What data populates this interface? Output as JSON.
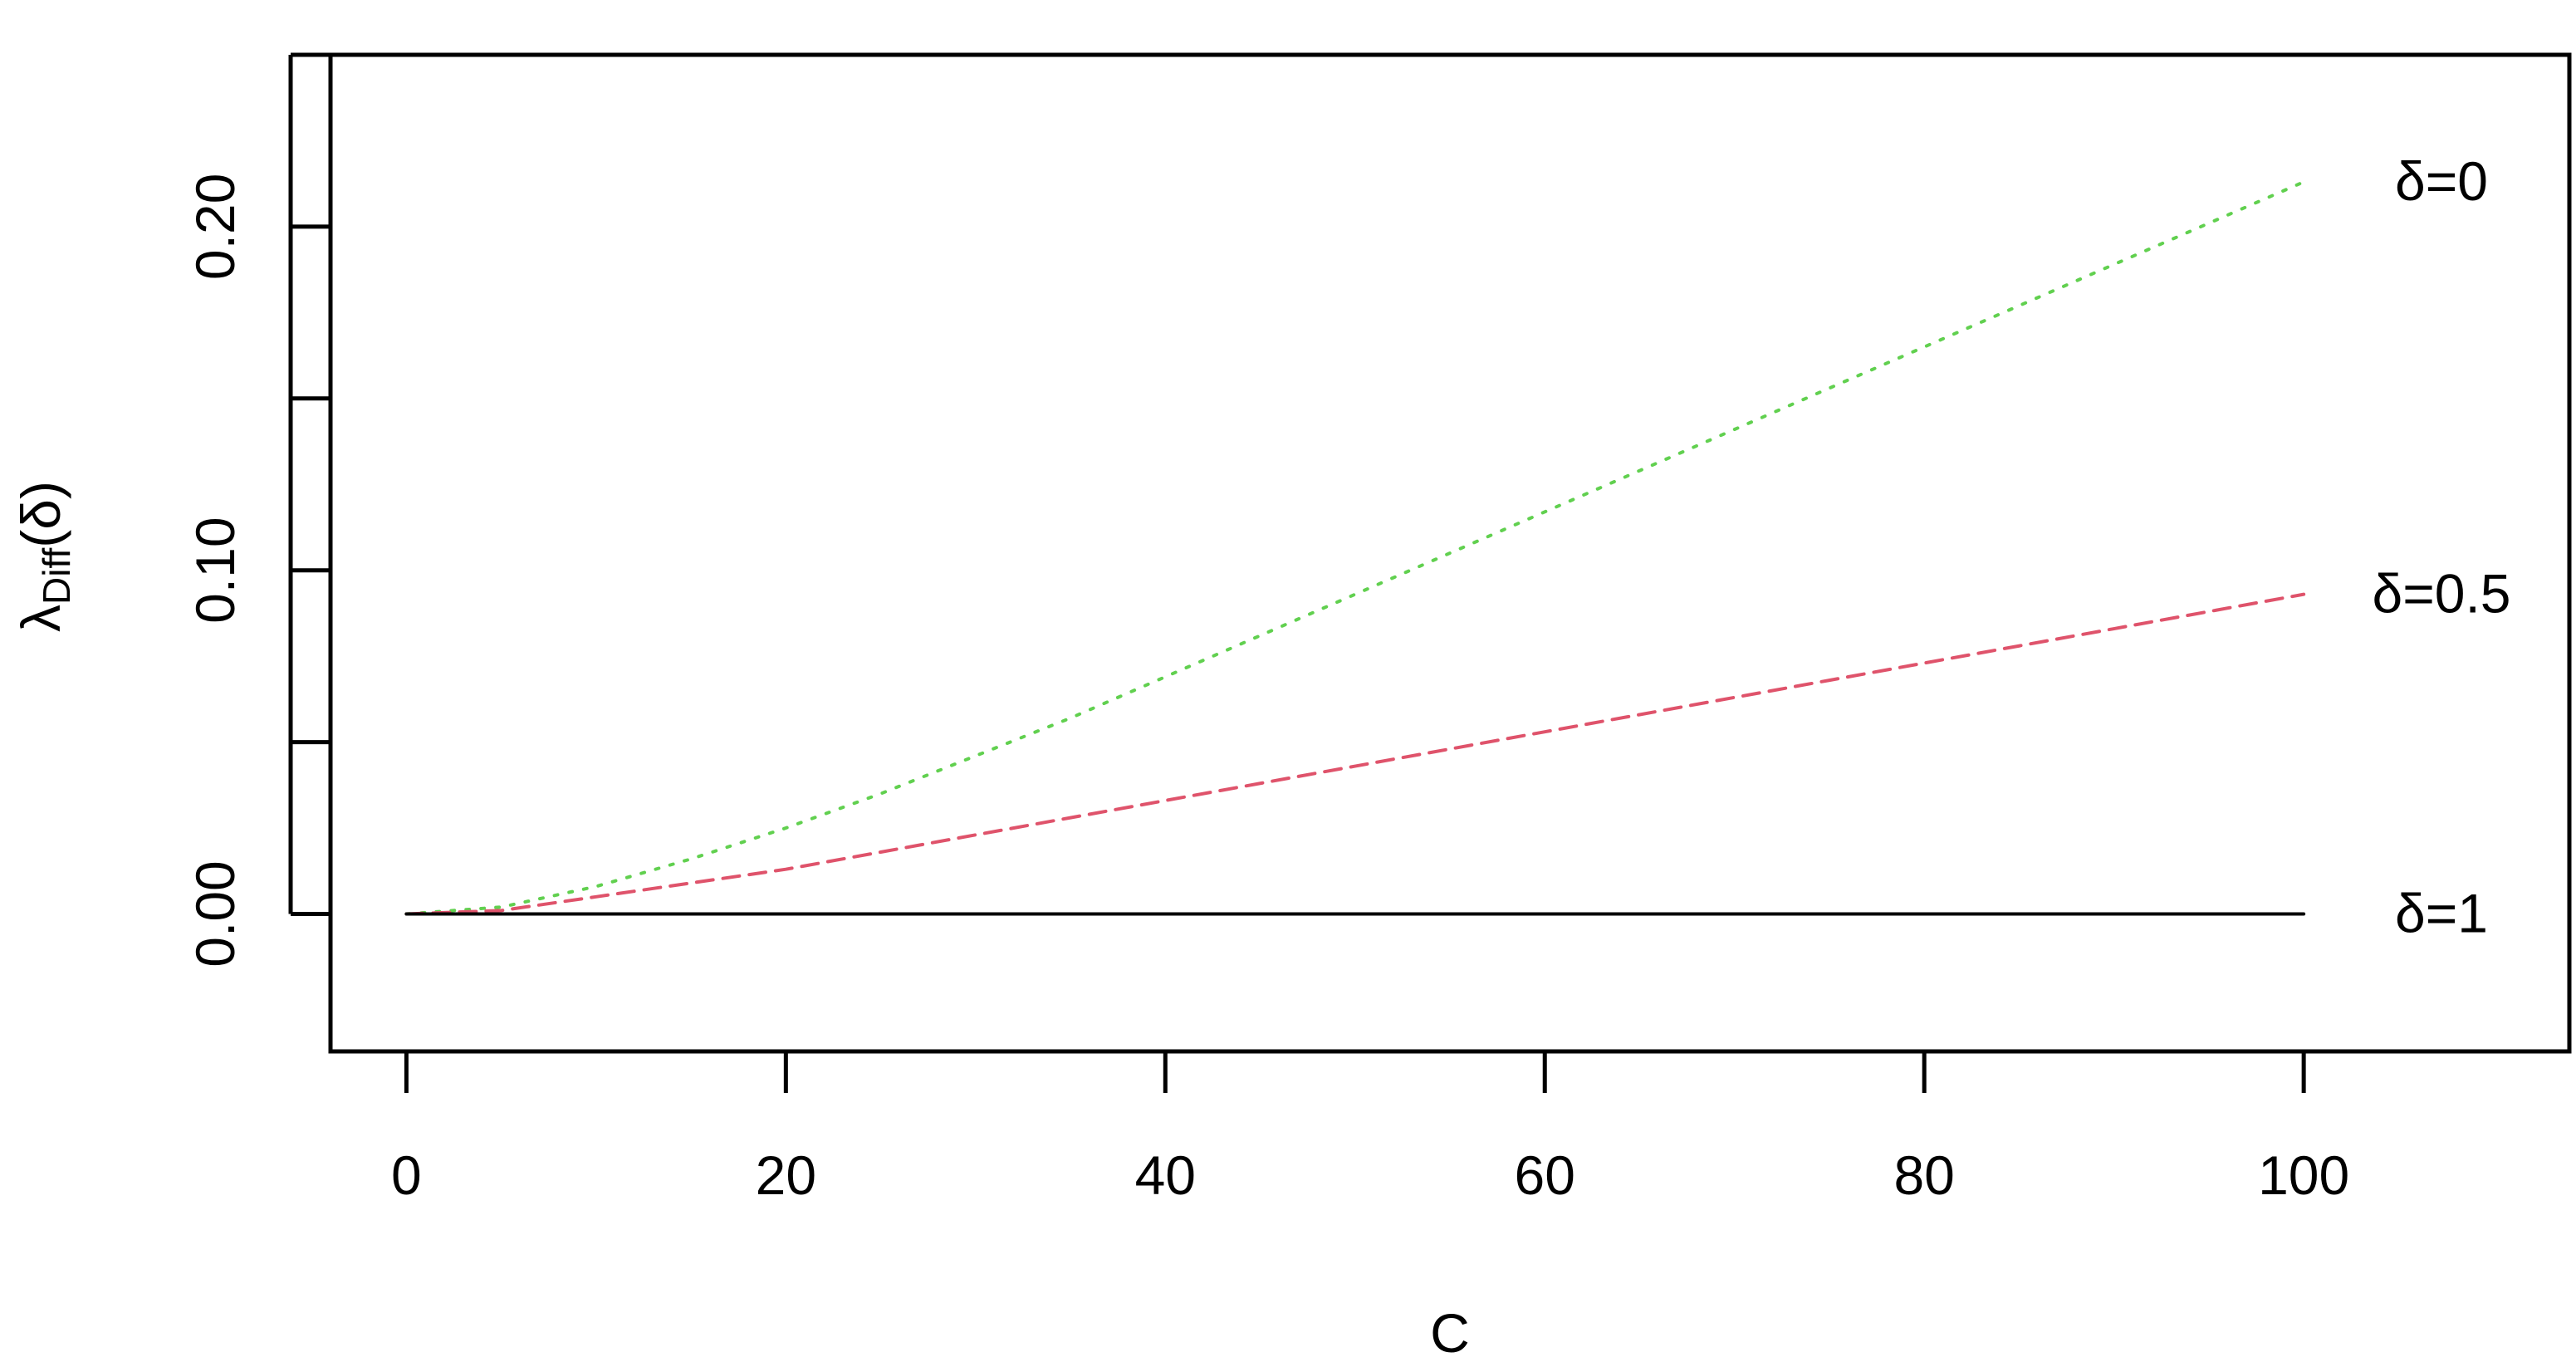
{
  "chart_data": {
    "type": "line",
    "title": "",
    "xlabel": "C",
    "ylabel": {
      "symbol": "λ",
      "subscript": "Diff",
      "argument": "(δ)"
    },
    "xlim": [
      -4,
      114
    ],
    "ylim": [
      -0.04,
      0.25
    ],
    "xticks": [
      0,
      20,
      40,
      60,
      80,
      100
    ],
    "xtick_labels": [
      "0",
      "20",
      "40",
      "60",
      "80",
      "100"
    ],
    "yticks": [
      0.0,
      0.05,
      0.1,
      0.15,
      0.2,
      0.25
    ],
    "ytick_labels": [
      "0.00",
      "",
      "0.10",
      "",
      "0.20",
      ""
    ],
    "grid": false,
    "legend": "none",
    "series": [
      {
        "name": "δ=0",
        "color": "#61D04F",
        "line_style": "dotted",
        "x": [
          0,
          5,
          10,
          15,
          20,
          25,
          30,
          35,
          40,
          45,
          50,
          55,
          60,
          65,
          70,
          75,
          80,
          85,
          90,
          95,
          100
        ],
        "y": [
          0.0,
          0.002,
          0.008,
          0.016,
          0.025,
          0.035,
          0.046,
          0.057,
          0.069,
          0.081,
          0.093,
          0.105,
          0.117,
          0.129,
          0.141,
          0.153,
          0.165,
          0.177,
          0.189,
          0.201,
          0.213
        ]
      },
      {
        "name": "δ=0.5",
        "color": "#DF536B",
        "line_style": "dashed",
        "x": [
          0,
          5,
          10,
          15,
          20,
          25,
          30,
          35,
          40,
          45,
          50,
          55,
          60,
          65,
          70,
          75,
          80,
          85,
          90,
          95,
          100
        ],
        "y": [
          0.0,
          0.001,
          0.005,
          0.009,
          0.013,
          0.018,
          0.023,
          0.028,
          0.033,
          0.038,
          0.043,
          0.048,
          0.053,
          0.058,
          0.063,
          0.068,
          0.073,
          0.078,
          0.083,
          0.088,
          0.093
        ]
      },
      {
        "name": "δ=1",
        "color": "#000000",
        "line_style": "solid",
        "x": [
          0,
          100
        ],
        "y": [
          0.0,
          0.0
        ]
      }
    ]
  }
}
